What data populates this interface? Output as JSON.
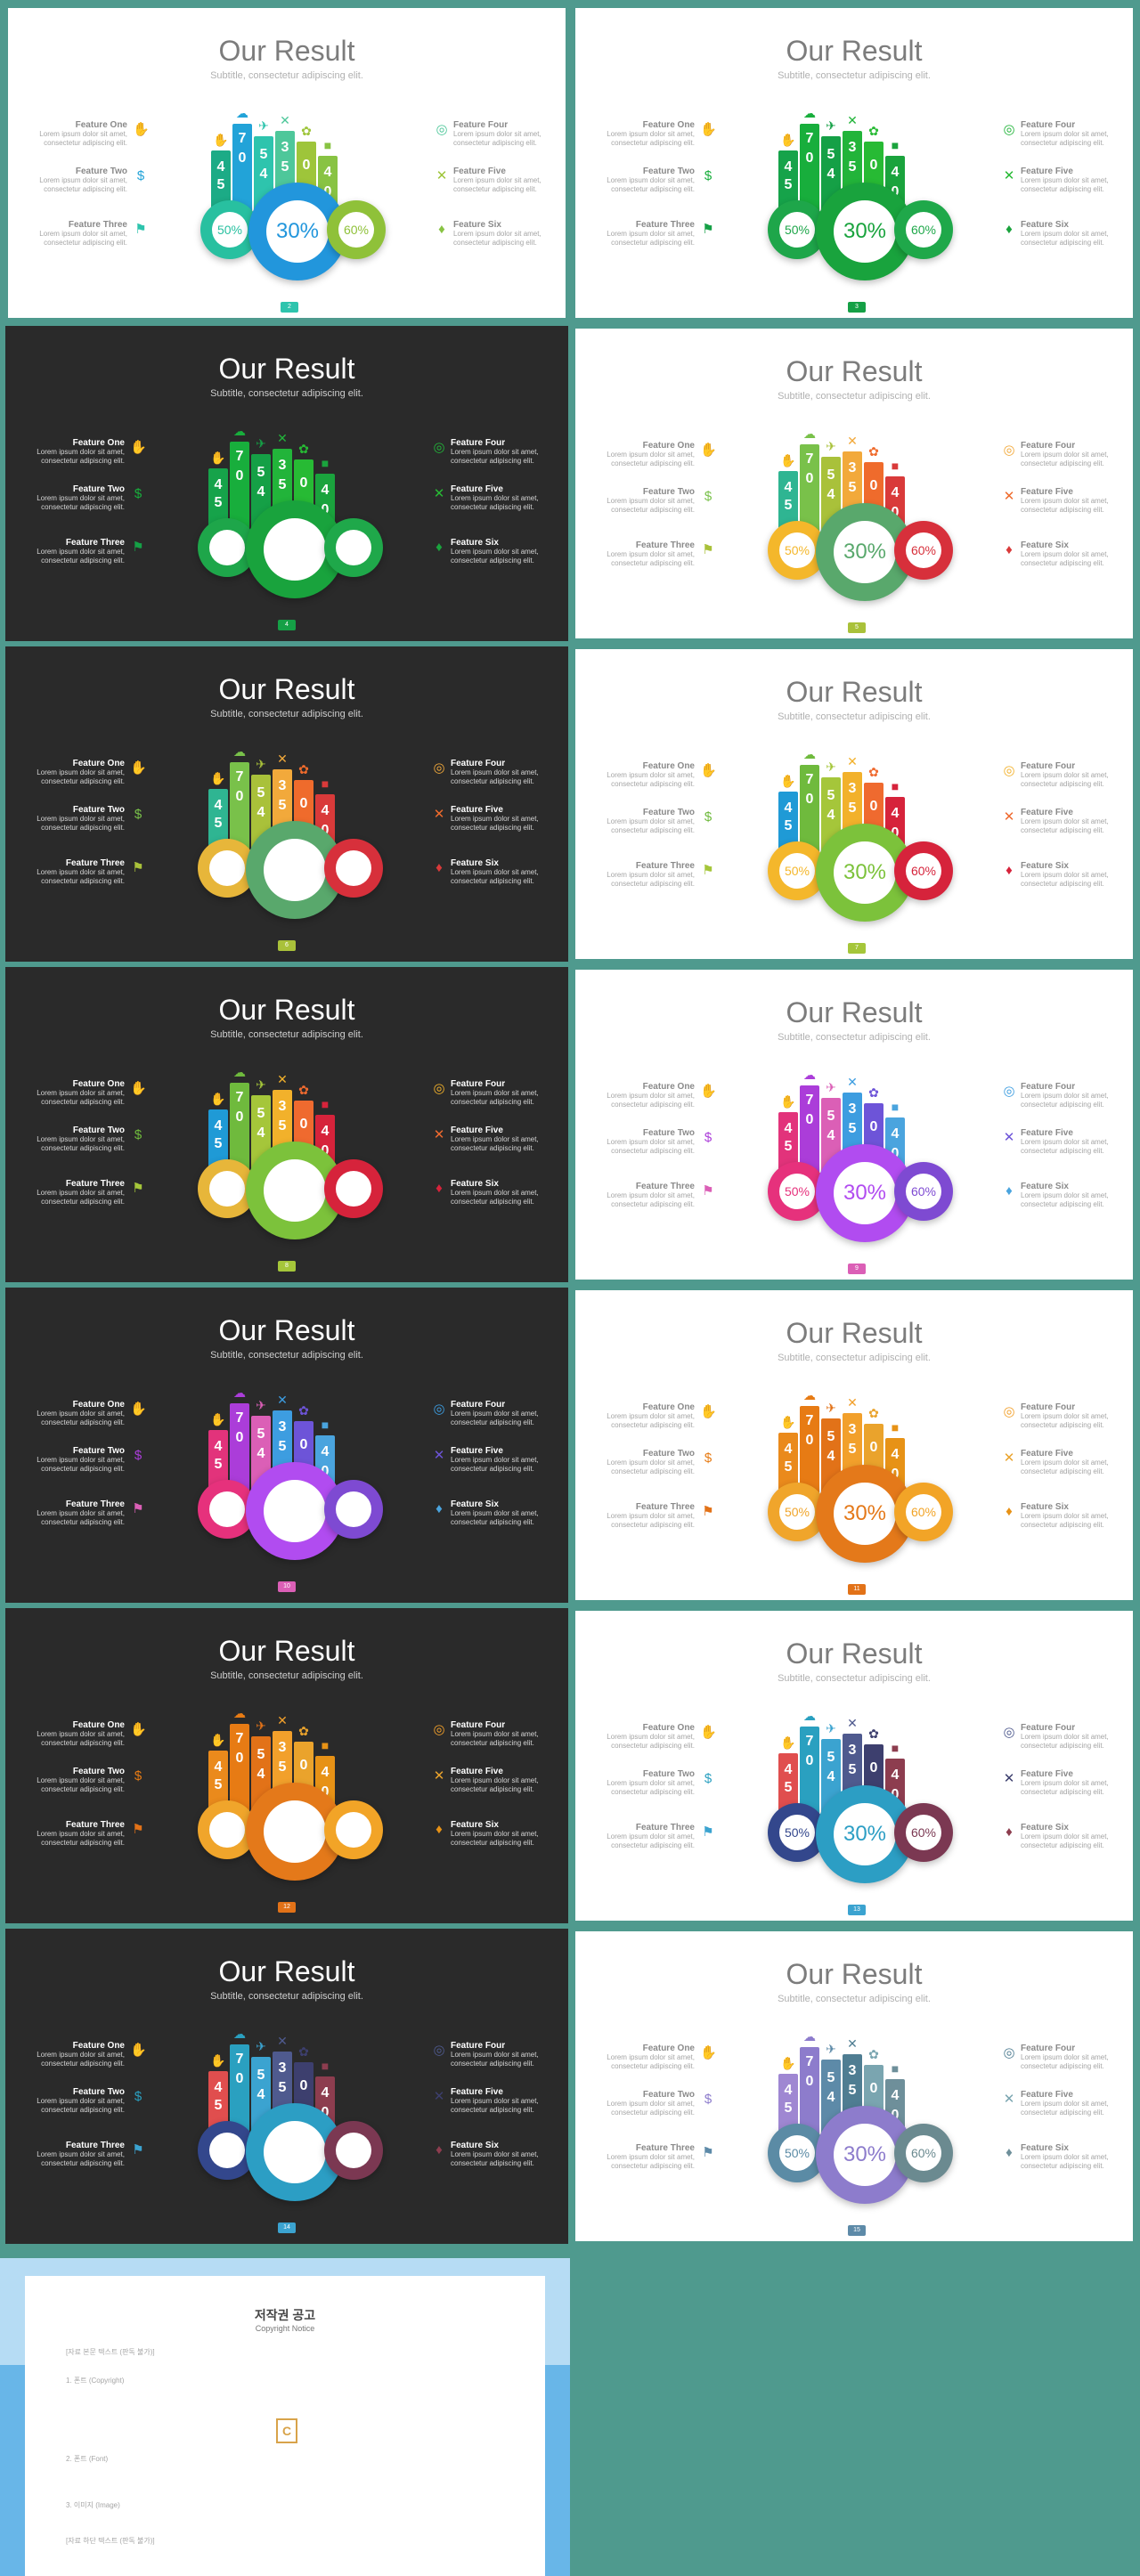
{
  "common": {
    "title": "Our Result",
    "subtitle": "Subtitle, consectetur adipiscing elit.",
    "desc": "Lorem ipsum dolor sit amet, consectetur adipiscing elit.",
    "features": [
      "Feature One",
      "Feature Two",
      "Feature Three",
      "Feature Four",
      "Feature Five",
      "Feature Six"
    ],
    "bar_values": [
      "4",
      "5",
      "7",
      "0",
      "5",
      "4",
      "3",
      "5",
      "0",
      "4",
      "0"
    ],
    "donut_left": "50%",
    "donut_center": "30%",
    "donut_right": "60%"
  },
  "slides": [
    {
      "theme": "light",
      "page": "2",
      "show_pct": true,
      "colors": [
        "#1cab86",
        "#22a3d8",
        "#2ec4ad",
        "#4ec79a",
        "#9ec53a",
        "#88c343"
      ],
      "donuts": [
        "#28c0a0",
        "#2296dc",
        "#8fc139"
      ]
    },
    {
      "theme": "light",
      "page": "3",
      "show_pct": true,
      "colors": [
        "#16a34a",
        "#18ae3c",
        "#15a046",
        "#22b43a",
        "#27ba34",
        "#1aa33d"
      ],
      "donuts": [
        "#1ea64a",
        "#19a33d",
        "#1fa84a"
      ]
    },
    {
      "theme": "dark",
      "page": "4",
      "show_pct": false,
      "colors": [
        "#16a34a",
        "#18ae3c",
        "#15a046",
        "#22b43a",
        "#27ba34",
        "#1aa33d"
      ],
      "donuts": [
        "#1ea64a",
        "#19a33d",
        "#1fa84a"
      ]
    },
    {
      "theme": "light",
      "page": "5",
      "show_pct": true,
      "colors": [
        "#2fb592",
        "#79c14a",
        "#a9c13a",
        "#f2a93b",
        "#ef6b2c",
        "#d93a3a"
      ],
      "donuts": [
        "#f4b72b",
        "#59a86c",
        "#d7303b"
      ]
    },
    {
      "theme": "dark",
      "page": "6",
      "show_pct": false,
      "colors": [
        "#2fb592",
        "#79c14a",
        "#a9c13a",
        "#f2a93b",
        "#ef6b2c",
        "#d93a3a"
      ],
      "donuts": [
        "#e7b63a",
        "#59a86c",
        "#d7303b"
      ]
    },
    {
      "theme": "light",
      "page": "7",
      "show_pct": true,
      "colors": [
        "#1f9ad6",
        "#6fba3d",
        "#a5c63a",
        "#f2b12b",
        "#ef6a2f",
        "#d6233b"
      ],
      "donuts": [
        "#f4b72b",
        "#7cc23b",
        "#d6233b"
      ]
    },
    {
      "theme": "dark",
      "page": "8",
      "show_pct": false,
      "colors": [
        "#1f9ad6",
        "#6fba3d",
        "#a5c63a",
        "#f2b12b",
        "#ef6a2f",
        "#d6233b"
      ],
      "donuts": [
        "#e7b63a",
        "#7cc23b",
        "#d6233b"
      ]
    },
    {
      "theme": "light",
      "page": "9",
      "show_pct": true,
      "colors": [
        "#e2337b",
        "#ab3dd9",
        "#db5fb6",
        "#3d9de0",
        "#6d54d8",
        "#4aa4de"
      ],
      "donuts": [
        "#e6317c",
        "#b14cf0",
        "#7e4ad2"
      ]
    },
    {
      "theme": "dark",
      "page": "10",
      "show_pct": false,
      "colors": [
        "#e2337b",
        "#ab3dd9",
        "#db5fb6",
        "#3d9de0",
        "#6d54d8",
        "#4aa4de"
      ],
      "donuts": [
        "#e6317c",
        "#b14cf0",
        "#7e4ad2"
      ]
    },
    {
      "theme": "light",
      "page": "11",
      "show_pct": true,
      "colors": [
        "#ea8a1c",
        "#e77b14",
        "#e27218",
        "#f2a02b",
        "#eaa32c",
        "#e79216"
      ],
      "donuts": [
        "#f0a52b",
        "#e4791a",
        "#f2a427"
      ]
    },
    {
      "theme": "dark",
      "page": "12",
      "show_pct": false,
      "colors": [
        "#ea8a1c",
        "#e77b14",
        "#e27218",
        "#f2a02b",
        "#eaa32c",
        "#e79216"
      ],
      "donuts": [
        "#f0a52b",
        "#e4791a",
        "#f2a427"
      ]
    },
    {
      "theme": "light",
      "page": "13",
      "show_pct": true,
      "colors": [
        "#e04e4e",
        "#2aa0c0",
        "#3ba3d0",
        "#4f5a8e",
        "#3d3f6e",
        "#8d3d4f"
      ],
      "donuts": [
        "#33478c",
        "#2c9ec4",
        "#7b3852"
      ]
    },
    {
      "theme": "dark",
      "page": "14",
      "show_pct": false,
      "colors": [
        "#e04e4e",
        "#2aa0c0",
        "#3ba3d0",
        "#4f5a8e",
        "#3d3f6e",
        "#8d3d4f"
      ],
      "donuts": [
        "#33478c",
        "#2c9ec4",
        "#7b3852"
      ]
    },
    {
      "theme": "light",
      "page": "15",
      "show_pct": true,
      "colors": [
        "#9f87d2",
        "#8d7ccc",
        "#5d8aa8",
        "#4f7d92",
        "#7aa5b0",
        "#6e8f9a"
      ],
      "donuts": [
        "#5b8ba5",
        "#8d7ccc",
        "#6b8a90"
      ]
    }
  ],
  "notice": {
    "title": "저작권 공고",
    "subtitle": "Copyright Notice",
    "intro": "[자료 본문 텍스트 (판독 불가)]",
    "p1": "1. 폰트 (Copyright)",
    "p2": "2. 폰트 (Font)",
    "p3": "3. 이미지 (Image)",
    "footer": "[자료 하단 텍스트 (판독 불가)]",
    "logo": "C"
  }
}
